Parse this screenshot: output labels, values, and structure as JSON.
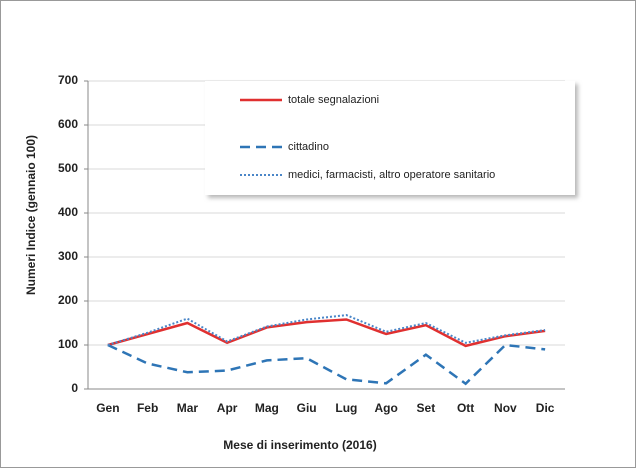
{
  "chart_data": {
    "type": "line",
    "xlabel": "Mese di inserimento  (2016)",
    "ylabel": "Numeri Indice (gennaio 100)",
    "categories": [
      "Gen",
      "Feb",
      "Mar",
      "Apr",
      "Mag",
      "Giu",
      "Lug",
      "Ago",
      "Set",
      "Ott",
      "Nov",
      "Dic"
    ],
    "series": [
      {
        "name": "totale segnalazioni",
        "color": "#e03030",
        "style": "solid",
        "values": [
          100,
          125,
          150,
          105,
          140,
          152,
          158,
          125,
          145,
          98,
          120,
          132
        ]
      },
      {
        "name": "cittadino",
        "color": "#2e75b6",
        "style": "dashed",
        "values": [
          100,
          58,
          38,
          42,
          65,
          70,
          22,
          13,
          78,
          12,
          100,
          90
        ]
      },
      {
        "name": "medici, farmacisti, altro operatore sanitario",
        "color": "#4a86c8",
        "style": "dotted",
        "values": [
          100,
          128,
          160,
          108,
          142,
          158,
          168,
          130,
          150,
          105,
          122,
          134
        ]
      }
    ],
    "ylim": [
      0,
      700
    ],
    "yticks": [
      0,
      100,
      200,
      300,
      400,
      500,
      600,
      700
    ],
    "grid": true
  }
}
